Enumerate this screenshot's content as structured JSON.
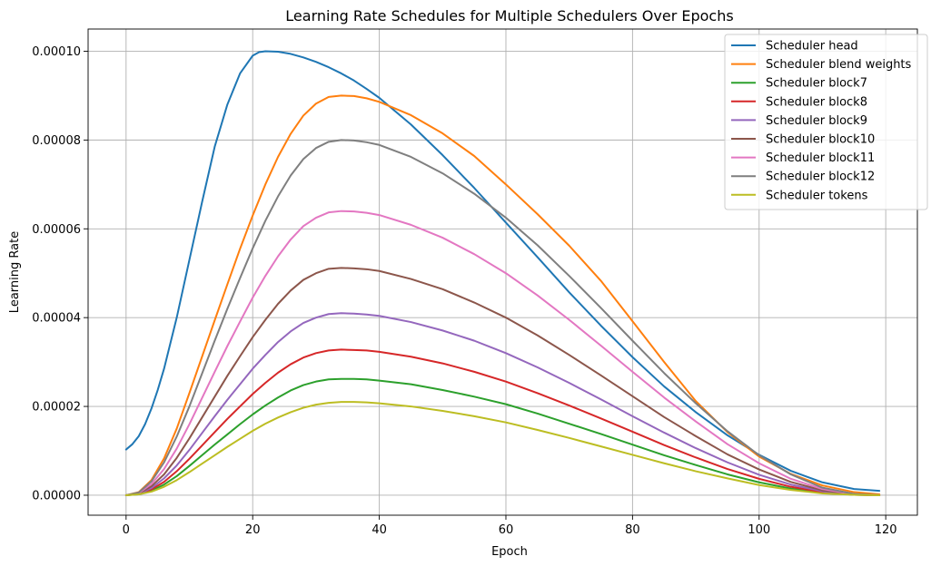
{
  "chart_data": {
    "type": "line",
    "title": "Learning Rate Schedules for Multiple Schedulers Over Epochs",
    "xlabel": "Epoch",
    "ylabel": "Learning Rate",
    "xlim": [
      -6,
      125
    ],
    "ylim": [
      -4.5e-06,
      0.000105
    ],
    "xticks": [
      0,
      20,
      40,
      60,
      80,
      100,
      120
    ],
    "xtick_labels": [
      "0",
      "20",
      "40",
      "60",
      "80",
      "100",
      "120"
    ],
    "yticks": [
      0,
      2e-05,
      4e-05,
      6e-05,
      8e-05,
      0.0001
    ],
    "ytick_labels": [
      "0.00000",
      "0.00002",
      "0.00004",
      "0.00006",
      "0.00008",
      "0.00010"
    ],
    "grid": true,
    "legend_position": "top-right",
    "series": [
      {
        "name": "Scheduler head",
        "color": "#1f77b4",
        "x": [
          0,
          1,
          2,
          3,
          4,
          5,
          6,
          8,
          10,
          12,
          14,
          16,
          18,
          20,
          21,
          22,
          24,
          26,
          28,
          30,
          32,
          34,
          36,
          38,
          40,
          45,
          50,
          55,
          60,
          65,
          70,
          75,
          80,
          85,
          90,
          95,
          100,
          105,
          110,
          115,
          119
        ],
        "y": [
          1.03e-05,
          1.15e-05,
          1.33e-05,
          1.6e-05,
          1.95e-05,
          2.37e-05,
          2.85e-05,
          4e-05,
          5.3e-05,
          6.6e-05,
          7.85e-05,
          8.8e-05,
          9.5e-05,
          9.9e-05,
          9.98e-05,
          0.0001,
          9.99e-05,
          9.94e-05,
          9.86e-05,
          9.76e-05,
          9.64e-05,
          9.5e-05,
          9.34e-05,
          9.15e-05,
          8.95e-05,
          8.35e-05,
          7.66e-05,
          6.92e-05,
          6.14e-05,
          5.36e-05,
          4.57e-05,
          3.82e-05,
          3.11e-05,
          2.45e-05,
          1.87e-05,
          1.35e-05,
          9.1e-06,
          5.5e-06,
          2.9e-06,
          1.4e-06,
          1e-06
        ]
      },
      {
        "name": "Scheduler blend weights",
        "color": "#ff7f0e",
        "x": [
          0,
          2,
          4,
          6,
          8,
          10,
          12,
          14,
          16,
          18,
          20,
          22,
          24,
          26,
          28,
          30,
          32,
          34,
          36,
          38,
          40,
          45,
          50,
          55,
          60,
          65,
          70,
          75,
          80,
          85,
          90,
          95,
          100,
          105,
          110,
          115,
          119
        ],
        "y": [
          0,
          7e-07,
          3.4e-06,
          8.3e-06,
          1.5e-05,
          2.3e-05,
          3.12e-05,
          3.94e-05,
          4.75e-05,
          5.55e-05,
          6.3e-05,
          7e-05,
          7.62e-05,
          8.14e-05,
          8.55e-05,
          8.82e-05,
          8.97e-05,
          9e-05,
          8.99e-05,
          8.94e-05,
          8.86e-05,
          8.56e-05,
          8.15e-05,
          7.64e-05,
          7e-05,
          6.33e-05,
          5.62e-05,
          4.83e-05,
          3.92e-05,
          3e-05,
          2.12e-05,
          1.42e-05,
          8.7e-06,
          4.8e-06,
          2.2e-06,
          7e-07,
          2e-07
        ]
      },
      {
        "name": "Scheduler block7",
        "color": "#2ca02c",
        "x": [
          0,
          2,
          4,
          6,
          8,
          10,
          12,
          14,
          16,
          18,
          20,
          22,
          24,
          26,
          28,
          30,
          32,
          34,
          36,
          38,
          40,
          45,
          50,
          55,
          60,
          65,
          70,
          75,
          80,
          85,
          90,
          95,
          100,
          105,
          110,
          115,
          119
        ],
        "y": [
          0,
          2e-07,
          1e-06,
          2.4e-06,
          4.3e-06,
          6.6e-06,
          9e-06,
          1.14e-05,
          1.37e-05,
          1.6e-05,
          1.82e-05,
          2.02e-05,
          2.2e-05,
          2.36e-05,
          2.48e-05,
          2.56e-05,
          2.61e-05,
          2.62e-05,
          2.62e-05,
          2.61e-05,
          2.58e-05,
          2.5e-05,
          2.37e-05,
          2.22e-05,
          2.05e-05,
          1.84e-05,
          1.61e-05,
          1.38e-05,
          1.14e-05,
          9e-06,
          6.8e-06,
          4.7e-06,
          2.9e-06,
          1.5e-06,
          6e-07,
          1e-07,
          0
        ]
      },
      {
        "name": "Scheduler block8",
        "color": "#d62728",
        "x": [
          0,
          2,
          4,
          6,
          8,
          10,
          12,
          14,
          16,
          18,
          20,
          22,
          24,
          26,
          28,
          30,
          32,
          34,
          36,
          38,
          40,
          45,
          50,
          55,
          60,
          65,
          70,
          75,
          80,
          85,
          90,
          95,
          100,
          105,
          110,
          115,
          119
        ],
        "y": [
          0,
          3e-07,
          1.3e-06,
          3e-06,
          5.4e-06,
          8.2e-06,
          1.12e-05,
          1.42e-05,
          1.72e-05,
          2e-05,
          2.28e-05,
          2.53e-05,
          2.76e-05,
          2.95e-05,
          3.1e-05,
          3.2e-05,
          3.26e-05,
          3.28e-05,
          3.27e-05,
          3.26e-05,
          3.23e-05,
          3.12e-05,
          2.97e-05,
          2.78e-05,
          2.56e-05,
          2.3e-05,
          2.02e-05,
          1.73e-05,
          1.43e-05,
          1.13e-05,
          8.5e-06,
          5.9e-06,
          3.7e-06,
          1.9e-06,
          7e-07,
          1e-07,
          0
        ]
      },
      {
        "name": "Scheduler block9",
        "color": "#9467bd",
        "x": [
          0,
          2,
          4,
          6,
          8,
          10,
          12,
          14,
          16,
          18,
          20,
          22,
          24,
          26,
          28,
          30,
          32,
          34,
          36,
          38,
          40,
          45,
          50,
          55,
          60,
          65,
          70,
          75,
          80,
          85,
          90,
          95,
          100,
          105,
          110,
          115,
          119
        ],
        "y": [
          0,
          3e-07,
          1.6e-06,
          3.8e-06,
          6.7e-06,
          1.02e-05,
          1.4e-05,
          1.78e-05,
          2.15e-05,
          2.5e-05,
          2.85e-05,
          3.16e-05,
          3.45e-05,
          3.69e-05,
          3.88e-05,
          4e-05,
          4.08e-05,
          4.1e-05,
          4.09e-05,
          4.07e-05,
          4.04e-05,
          3.9e-05,
          3.71e-05,
          3.48e-05,
          3.2e-05,
          2.88e-05,
          2.53e-05,
          2.16e-05,
          1.78e-05,
          1.41e-05,
          1.06e-05,
          7.4e-06,
          4.6e-06,
          2.4e-06,
          9e-07,
          2e-07,
          0
        ]
      },
      {
        "name": "Scheduler block10",
        "color": "#8c564b",
        "x": [
          0,
          2,
          4,
          6,
          8,
          10,
          12,
          14,
          16,
          18,
          20,
          22,
          24,
          26,
          28,
          30,
          32,
          34,
          36,
          38,
          40,
          45,
          50,
          55,
          60,
          65,
          70,
          75,
          80,
          85,
          90,
          95,
          100,
          105,
          110,
          115,
          119
        ],
        "y": [
          0,
          4e-07,
          2e-06,
          4.7e-06,
          8.4e-06,
          1.28e-05,
          1.75e-05,
          2.22e-05,
          2.69e-05,
          3.13e-05,
          3.56e-05,
          3.95e-05,
          4.31e-05,
          4.61e-05,
          4.85e-05,
          5e-05,
          5.1e-05,
          5.12e-05,
          5.11e-05,
          5.09e-05,
          5.05e-05,
          4.87e-05,
          4.64e-05,
          4.34e-05,
          4e-05,
          3.6e-05,
          3.16e-05,
          2.7e-05,
          2.23e-05,
          1.76e-05,
          1.33e-05,
          9.2e-06,
          5.8e-06,
          3e-06,
          1.1e-06,
          2e-07,
          0
        ]
      },
      {
        "name": "Scheduler block11",
        "color": "#e377c2",
        "x": [
          0,
          2,
          4,
          6,
          8,
          10,
          12,
          14,
          16,
          18,
          20,
          22,
          24,
          26,
          28,
          30,
          32,
          34,
          36,
          38,
          40,
          45,
          50,
          55,
          60,
          65,
          70,
          75,
          80,
          85,
          90,
          95,
          100,
          105,
          110,
          115,
          119
        ],
        "y": [
          0,
          5e-07,
          2.5e-06,
          5.9e-06,
          1.05e-05,
          1.6e-05,
          2.19e-05,
          2.78e-05,
          3.36e-05,
          3.91e-05,
          4.45e-05,
          4.94e-05,
          5.38e-05,
          5.76e-05,
          6.06e-05,
          6.25e-05,
          6.37e-05,
          6.4e-05,
          6.39e-05,
          6.36e-05,
          6.31e-05,
          6.09e-05,
          5.8e-05,
          5.43e-05,
          5e-05,
          4.5e-05,
          3.95e-05,
          3.37e-05,
          2.78e-05,
          2.2e-05,
          1.66e-05,
          1.15e-05,
          7.2e-06,
          3.7e-06,
          1.4e-06,
          2e-07,
          0
        ]
      },
      {
        "name": "Scheduler block12",
        "color": "#7f7f7f",
        "x": [
          0,
          2,
          4,
          6,
          8,
          10,
          12,
          14,
          16,
          18,
          20,
          22,
          24,
          26,
          28,
          30,
          32,
          34,
          36,
          38,
          40,
          45,
          50,
          55,
          60,
          65,
          70,
          75,
          80,
          85,
          90,
          95,
          100,
          105,
          110,
          115,
          119
        ],
        "y": [
          0,
          6e-07,
          3.1e-06,
          7.4e-06,
          1.32e-05,
          2e-05,
          2.74e-05,
          3.48e-05,
          4.2e-05,
          4.89e-05,
          5.56e-05,
          6.18e-05,
          6.73e-05,
          7.2e-05,
          7.57e-05,
          7.82e-05,
          7.96e-05,
          8e-05,
          7.99e-05,
          7.95e-05,
          7.89e-05,
          7.62e-05,
          7.25e-05,
          6.79e-05,
          6.25e-05,
          5.63e-05,
          4.94e-05,
          4.22e-05,
          3.48e-05,
          2.75e-05,
          2.07e-05,
          1.44e-05,
          9e-06,
          4.7e-06,
          1.7e-06,
          3e-07,
          0
        ]
      },
      {
        "name": "Scheduler tokens",
        "color": "#bcbd22",
        "x": [
          0,
          2,
          4,
          6,
          8,
          10,
          12,
          14,
          16,
          18,
          20,
          22,
          24,
          26,
          28,
          30,
          32,
          34,
          36,
          38,
          40,
          45,
          50,
          55,
          60,
          65,
          70,
          75,
          80,
          85,
          90,
          95,
          100,
          105,
          110,
          115,
          119
        ],
        "y": [
          0,
          2e-07,
          8e-07,
          1.9e-06,
          3.4e-06,
          5.2e-06,
          7.1e-06,
          9e-06,
          1.09e-05,
          1.27e-05,
          1.45e-05,
          1.61e-05,
          1.75e-05,
          1.87e-05,
          1.97e-05,
          2.04e-05,
          2.08e-05,
          2.1e-05,
          2.1e-05,
          2.09e-05,
          2.07e-05,
          2e-05,
          1.9e-05,
          1.78e-05,
          1.64e-05,
          1.47e-05,
          1.29e-05,
          1.1e-05,
          9.1e-06,
          7.2e-06,
          5.4e-06,
          3.8e-06,
          2.3e-06,
          1.2e-06,
          4e-07,
          1e-07,
          0
        ]
      }
    ]
  }
}
